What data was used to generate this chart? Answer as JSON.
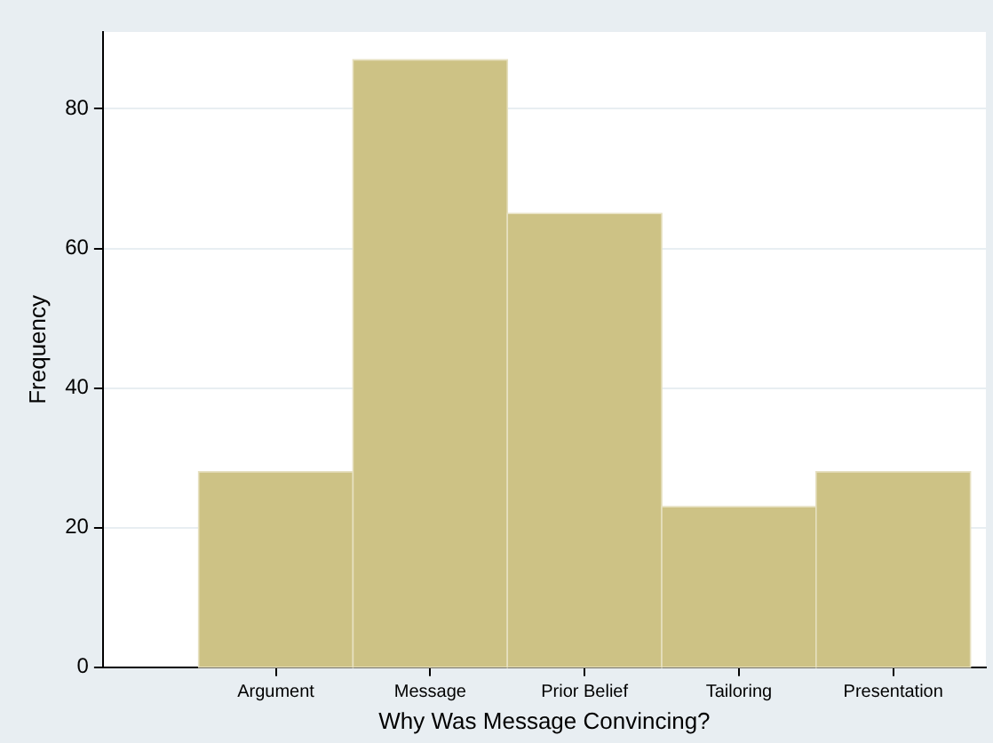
{
  "chart_data": {
    "type": "bar",
    "xlabel": "Why Was Message Convincing?",
    "ylabel": "Frequency",
    "categories": [
      "Argument",
      "Message",
      "Prior Belief",
      "Tailoring",
      "Presentation"
    ],
    "values": [
      28,
      87,
      65,
      23,
      28
    ],
    "color": "#cdc285",
    "ylim": [
      0,
      91
    ],
    "yticks": [
      0,
      20,
      40,
      60,
      80
    ],
    "grid": "y"
  }
}
